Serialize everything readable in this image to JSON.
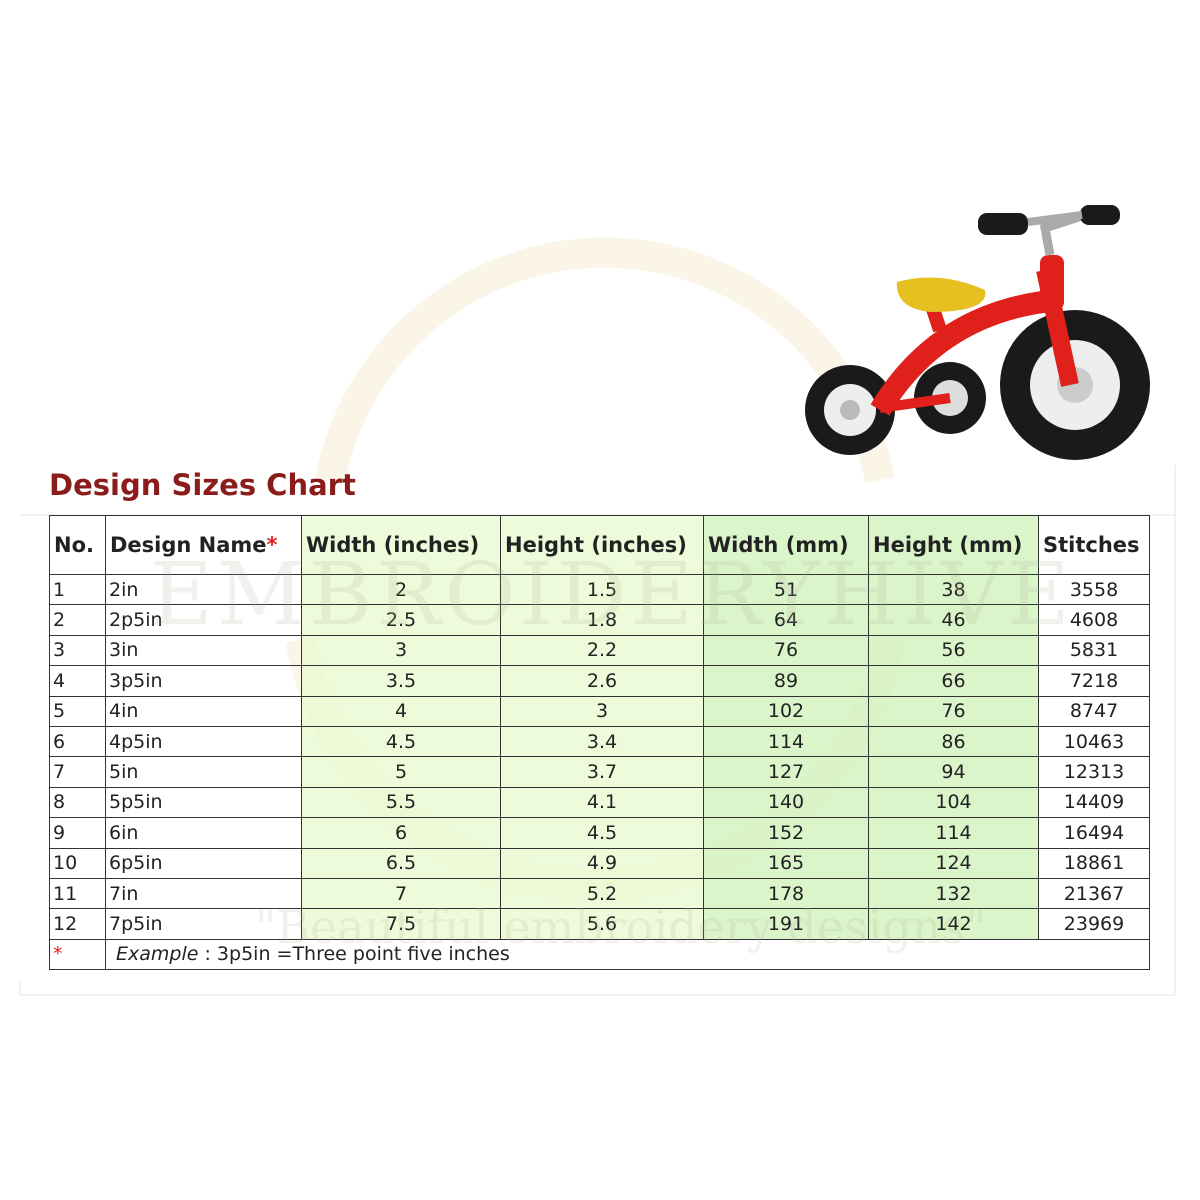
{
  "title": "Design Sizes Chart",
  "watermark": {
    "brand": "EMBROIDERYHIVE",
    "slogan": "\"Beautiful embroidery designs\""
  },
  "table": {
    "headers": [
      "No.",
      "Design Name",
      "Width (inches)",
      "Height (inches)",
      "Width (mm)",
      "Height (mm)",
      "Stitches"
    ],
    "header_mark": "*",
    "rows": [
      [
        1,
        "2in",
        2,
        1.5,
        51,
        38,
        3558
      ],
      [
        2,
        "2p5in",
        2.5,
        1.8,
        64,
        46,
        4608
      ],
      [
        3,
        "3in",
        3,
        2.2,
        76,
        56,
        5831
      ],
      [
        4,
        "3p5in",
        3.5,
        2.6,
        89,
        66,
        7218
      ],
      [
        5,
        "4in",
        4,
        3,
        102,
        76,
        8747
      ],
      [
        6,
        "4p5in",
        4.5,
        3.4,
        114,
        86,
        10463
      ],
      [
        7,
        "5in",
        5,
        3.7,
        127,
        94,
        12313
      ],
      [
        8,
        "5p5in",
        5.5,
        4.1,
        140,
        104,
        14409
      ],
      [
        9,
        "6in",
        6,
        4.5,
        152,
        114,
        16494
      ],
      [
        10,
        "6p5in",
        6.5,
        4.9,
        165,
        124,
        18861
      ],
      [
        11,
        "7in",
        7,
        5.2,
        178,
        132,
        21367
      ],
      [
        12,
        "7p5in",
        7.5,
        5.6,
        191,
        142,
        23969
      ]
    ],
    "footer": {
      "marker": "*",
      "example": "Example",
      "text": ": 3p5in =Three point five inches"
    }
  }
}
